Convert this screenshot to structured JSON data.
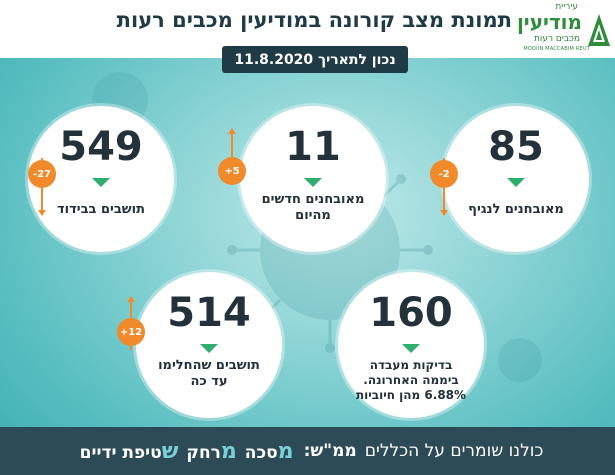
{
  "header": {
    "title": "תמונת מצב קורונה במודיעין מכבים רעות",
    "date": "נכון לתאריך 11.8.2020"
  },
  "logo": {
    "top": "עיריית",
    "main": "מודיעין",
    "sub": "מכבים רעות",
    "eng": "MODIIN MACCABIM REUT",
    "color": "#2f8c3a"
  },
  "stats": {
    "diagnosed_current": {
      "value": "85",
      "label": "מאובחנים לנגיף",
      "change": "-2",
      "direction": "down"
    },
    "new_today": {
      "value": "11",
      "label": "מאובחנים חדשים מהיום",
      "change": "+5",
      "direction": "up"
    },
    "isolation": {
      "value": "549",
      "label": "תושבים בבידוד",
      "change": "-27",
      "direction": "down"
    },
    "tests": {
      "value": "160",
      "label": "בדיקות מעבדה ביממה האחרונה. 6.88% מהן חיוביות"
    },
    "recovered": {
      "value": "514",
      "label": "תושבים שהחלימו עד כה",
      "change": "+12",
      "direction": "up"
    }
  },
  "footer": {
    "intro": "כולנו שומרים על הכללים",
    "bold": "ממ\"ש:",
    "words": [
      {
        "initial": "מ",
        "rest": "סכה"
      },
      {
        "initial": "מ",
        "rest": "רחק"
      },
      {
        "initial": "ש",
        "rest": "טיפת ידיים"
      }
    ]
  },
  "colors": {
    "accent_orange": "#f08a2a",
    "arrow_green": "#2fae6f",
    "dark_navy": "#1f3b45",
    "footer_bg": "#2c4b57",
    "teal_bg": "#5cc0c2"
  }
}
